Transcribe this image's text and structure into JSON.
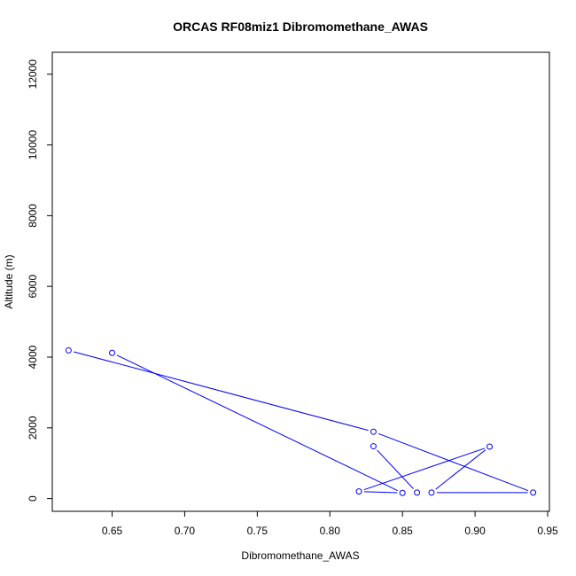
{
  "chart_data": {
    "type": "line",
    "title": "ORCAS RF08miz1 Dibromomethane_AWAS",
    "xlabel": "Dibromomethane_AWAS",
    "ylabel": "Altitude (m)",
    "xlim": [
      0.6088,
      0.9512
    ],
    "ylim": [
      -360,
      12620
    ],
    "x_ticks": [
      0.65,
      0.7,
      0.75,
      0.8,
      0.85,
      0.9,
      0.95
    ],
    "x_tick_labels": [
      "0.65",
      "0.70",
      "0.75",
      "0.80",
      "0.85",
      "0.90",
      "0.95"
    ],
    "y_ticks": [
      0,
      2000,
      4000,
      6000,
      8000,
      10000,
      12000
    ],
    "y_tick_labels": [
      "0",
      "2000",
      "4000",
      "6000",
      "8000",
      "10000",
      "12000"
    ],
    "grid": false,
    "series_color": "#0000ff",
    "points": [
      {
        "x": 0.65,
        "y": 4120
      },
      {
        "x": 0.85,
        "y": 160
      },
      {
        "x": 0.82,
        "y": 200
      },
      {
        "x": 0.91,
        "y": 1470
      },
      {
        "x": 0.87,
        "y": 170
      },
      {
        "x": 0.94,
        "y": 170
      },
      {
        "x": 0.83,
        "y": 1890
      },
      {
        "x": 0.62,
        "y": 4190
      }
    ],
    "points_tail": [
      {
        "x": 0.83,
        "y": 1480
      },
      {
        "x": 0.86,
        "y": 170
      }
    ]
  }
}
